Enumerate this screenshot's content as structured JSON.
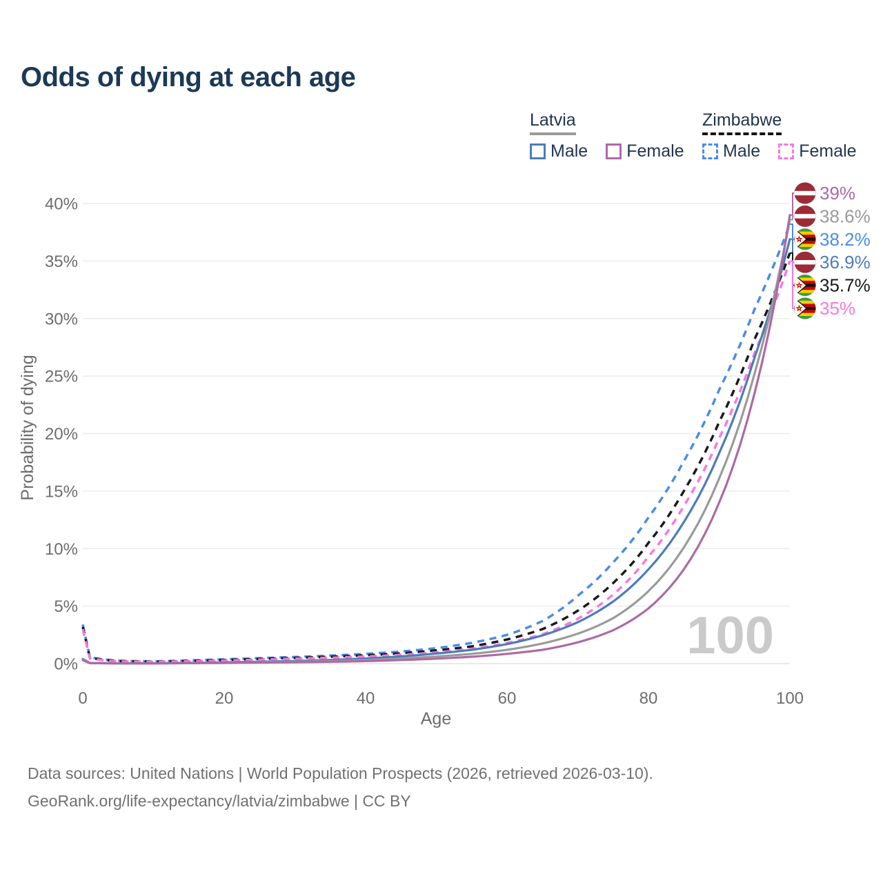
{
  "title": "Odds of dying at each age",
  "watermark": "100",
  "legend": {
    "groups": [
      {
        "country": "Latvia",
        "underline_style": "solid",
        "underline_color": "#9a9a9a",
        "items": [
          {
            "label": "Male",
            "series": "lv_male"
          },
          {
            "label": "Female",
            "series": "lv_female"
          }
        ]
      },
      {
        "country": "Zimbabwe",
        "underline_style": "dashed",
        "underline_color": "#141414",
        "items": [
          {
            "label": "Male",
            "series": "zw_male"
          },
          {
            "label": "Female",
            "series": "zw_female"
          }
        ]
      }
    ]
  },
  "axes": {
    "x": {
      "label": "Age",
      "ticks": [
        0,
        20,
        40,
        60,
        80,
        100
      ],
      "min": 0,
      "max": 100
    },
    "y": {
      "label": "Probability of dying",
      "tick_labels": [
        "0%",
        "5%",
        "10%",
        "15%",
        "20%",
        "25%",
        "30%",
        "35%",
        "40%"
      ],
      "tick_values": [
        0,
        5,
        10,
        15,
        20,
        25,
        30,
        35,
        40
      ],
      "min": 0,
      "max": 40
    }
  },
  "chart_data": {
    "type": "line",
    "title": "Odds of dying at each age",
    "xlabel": "Age",
    "ylabel": "Probability of dying",
    "xlim": [
      0,
      100
    ],
    "ylim": [
      0,
      40
    ],
    "grid": true,
    "legend_position": "top-right",
    "x": [
      0,
      1,
      5,
      10,
      15,
      20,
      25,
      30,
      35,
      40,
      45,
      50,
      55,
      60,
      65,
      70,
      75,
      80,
      85,
      90,
      95,
      100
    ],
    "series": [
      {
        "id": "zw_male",
        "name": "Zimbabwe Male",
        "country": "Zimbabwe",
        "sex": "Male",
        "color": "#4a8ce8",
        "dash": true,
        "values": [
          3.4,
          0.55,
          0.25,
          0.2,
          0.28,
          0.38,
          0.48,
          0.58,
          0.7,
          0.85,
          1.05,
          1.35,
          1.8,
          2.5,
          3.7,
          5.9,
          8.8,
          12.7,
          17.6,
          23.8,
          30.8,
          38.2
        ],
        "end_label": "38.2%"
      },
      {
        "id": "zw_all",
        "name": "Zimbabwe",
        "country": "Zimbabwe",
        "sex": "All",
        "color": "#1a1a1a",
        "dash": true,
        "values": [
          3.2,
          0.5,
          0.22,
          0.17,
          0.23,
          0.32,
          0.41,
          0.5,
          0.6,
          0.72,
          0.9,
          1.15,
          1.5,
          2.1,
          3.0,
          4.6,
          7.0,
          10.5,
          15.0,
          21.0,
          28.2,
          35.7
        ],
        "end_label": "35.7%"
      },
      {
        "id": "zw_female",
        "name": "Zimbabwe Female",
        "country": "Zimbabwe",
        "sex": "Female",
        "color": "#f878e0",
        "dash": true,
        "values": [
          3.0,
          0.45,
          0.19,
          0.15,
          0.2,
          0.27,
          0.35,
          0.43,
          0.51,
          0.62,
          0.76,
          0.97,
          1.28,
          1.8,
          2.55,
          3.9,
          6.0,
          9.3,
          13.7,
          19.6,
          27.0,
          35.0
        ],
        "end_label": "35%"
      },
      {
        "id": "lv_male",
        "name": "Latvia Male",
        "country": "Latvia",
        "sex": "Male",
        "color": "#4d7cb7",
        "dash": false,
        "values": [
          0.4,
          0.06,
          0.03,
          0.03,
          0.07,
          0.12,
          0.17,
          0.23,
          0.32,
          0.45,
          0.63,
          0.88,
          1.2,
          1.7,
          2.45,
          3.6,
          5.4,
          8.2,
          12.3,
          18.3,
          26.6,
          36.9
        ],
        "end_label": "36.9%"
      },
      {
        "id": "lv_all",
        "name": "Latvia",
        "country": "Latvia",
        "sex": "All",
        "color": "#9a9a9a",
        "dash": false,
        "values": [
          0.35,
          0.05,
          0.025,
          0.025,
          0.05,
          0.09,
          0.12,
          0.17,
          0.23,
          0.32,
          0.45,
          0.62,
          0.85,
          1.2,
          1.75,
          2.6,
          3.95,
          6.3,
          10.1,
          16.1,
          25.2,
          38.6
        ],
        "end_label": "38.6%"
      },
      {
        "id": "lv_female",
        "name": "Latvia Female",
        "country": "Latvia",
        "sex": "Female",
        "color": "#ad69a5",
        "dash": false,
        "values": [
          0.3,
          0.04,
          0.02,
          0.02,
          0.04,
          0.06,
          0.09,
          0.12,
          0.16,
          0.22,
          0.31,
          0.43,
          0.6,
          0.85,
          1.2,
          1.85,
          2.9,
          4.8,
          8.2,
          14.0,
          23.5,
          39.0
        ],
        "end_label": "39%"
      }
    ]
  },
  "end_labels": [
    {
      "text": "39%",
      "flag": "latvia",
      "series": "lv_female"
    },
    {
      "text": "38.6%",
      "flag": "latvia",
      "series": "lv_all"
    },
    {
      "text": "38.2%",
      "flag": "zimbabwe",
      "series": "zw_male"
    },
    {
      "text": "36.9%",
      "flag": "latvia",
      "series": "lv_male"
    },
    {
      "text": "35.7%",
      "flag": "zimbabwe",
      "series": "zw_all"
    },
    {
      "text": "35%",
      "flag": "zimbabwe",
      "series": "zw_female"
    }
  ],
  "footer": {
    "line1": "Data sources: United Nations | World Population Prospects (2026, retrieved 2026-03-10).",
    "line2": "GeoRank.org/life-expectancy/latvia/zimbabwe | CC BY"
  },
  "colors": {
    "title_text": "#1c3a57",
    "legend_text": "#22354e",
    "axis_text": "#6d6d6d",
    "gridline": "#ececec",
    "baseline": "#e2e2e2",
    "watermark": "#cacaca",
    "footer_text": "#707070",
    "latvia_flag_red": "#9d2b36",
    "zimbabwe_green": "#3a9e3a",
    "zimbabwe_yellow": "#f7d000",
    "zimbabwe_red": "#d40000"
  }
}
